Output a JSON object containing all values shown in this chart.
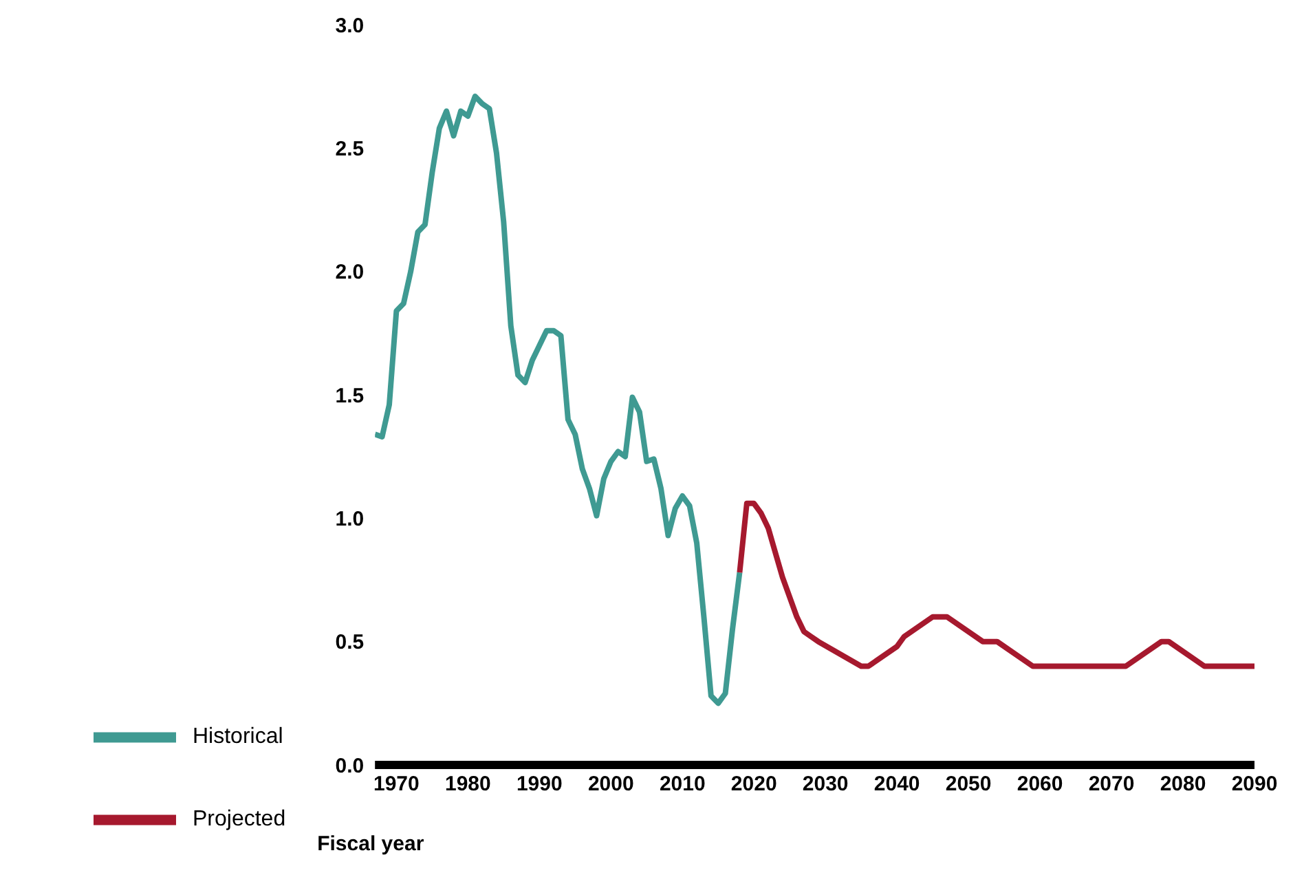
{
  "chart_data": {
    "type": "line",
    "xlabel": "Fiscal year",
    "xlim": [
      1967,
      2090
    ],
    "xticks": [
      1970,
      1980,
      1990,
      2000,
      2010,
      2020,
      2030,
      2040,
      2050,
      2060,
      2070,
      2080,
      2090
    ],
    "ylim": [
      0,
      3
    ],
    "yticks": [
      {
        "value": 0,
        "label": "0.0"
      },
      0.5,
      {
        "value": 1,
        "label": "1.0"
      },
      1.5,
      {
        "value": 2,
        "label": "2.0"
      },
      2.5,
      {
        "value": 3,
        "label": "3.0"
      }
    ],
    "grid": false,
    "legend": "bottom left",
    "marker": "none",
    "line_style": "solid",
    "series": [
      {
        "name": "Historical",
        "color": "#3f9a92",
        "x": [
          1967,
          1968,
          1969,
          1970,
          1971,
          1972,
          1973,
          1974,
          1975,
          1976,
          1977,
          1978,
          1979,
          1980,
          1981,
          1982,
          1983,
          1984,
          1985,
          1986,
          1987,
          1988,
          1989,
          1990,
          1991,
          1992,
          1993,
          1994,
          1995,
          1996,
          1997,
          1998,
          1999,
          2000,
          2001,
          2002,
          2003,
          2004,
          2005,
          2006,
          2007,
          2008,
          2009,
          2010,
          2011,
          2012,
          2013,
          2014,
          2015,
          2016,
          2017,
          2018
        ],
        "values": [
          1.34,
          1.33,
          1.46,
          1.84,
          1.87,
          2.0,
          2.16,
          2.19,
          2.4,
          2.58,
          2.65,
          2.55,
          2.65,
          2.63,
          2.71,
          2.68,
          2.66,
          2.48,
          2.2,
          1.78,
          1.58,
          1.55,
          1.64,
          1.7,
          1.76,
          1.76,
          1.74,
          1.4,
          1.34,
          1.2,
          1.12,
          1.01,
          1.16,
          1.23,
          1.27,
          1.25,
          1.49,
          1.43,
          1.23,
          1.24,
          1.12,
          0.93,
          1.04,
          1.09,
          1.05,
          0.9,
          0.6,
          0.28,
          0.25,
          0.29,
          0.55,
          0.78
        ]
      },
      {
        "name": "Projected",
        "color": "#a6192e",
        "x": [
          2018,
          2019,
          2020,
          2021,
          2022,
          2023,
          2024,
          2025,
          2026,
          2027,
          2028,
          2029,
          2035,
          2036,
          2040,
          2041,
          2045,
          2047,
          2052,
          2054,
          2059,
          2072,
          2077,
          2078,
          2083,
          2090
        ],
        "values": [
          0.78,
          1.06,
          1.06,
          1.02,
          0.96,
          0.86,
          0.76,
          0.68,
          0.6,
          0.54,
          0.52,
          0.5,
          0.4,
          0.4,
          0.48,
          0.52,
          0.6,
          0.6,
          0.5,
          0.5,
          0.4,
          0.4,
          0.5,
          0.5,
          0.4,
          0.4
        ]
      }
    ]
  }
}
